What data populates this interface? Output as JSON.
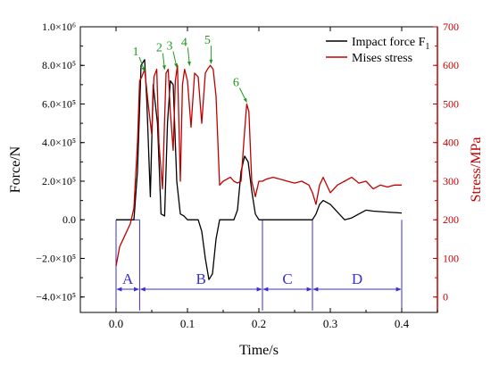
{
  "chart_data": {
    "type": "line",
    "xlabel": "Time/s",
    "ylabel": "Force/N",
    "y2label": "Stress/MPa",
    "xlim": [
      -0.05,
      0.45
    ],
    "ylim": [
      -480000,
      1000000
    ],
    "y2lim": [
      -40,
      700
    ],
    "x_ticks": [
      0.0,
      0.1,
      0.2,
      0.3,
      0.4
    ],
    "x_tick_labels": [
      "0.0",
      "0.1",
      "0.2",
      "0.3",
      "0.4"
    ],
    "y_ticks": [
      -400000,
      -200000,
      0,
      200000,
      400000,
      600000,
      800000,
      1000000
    ],
    "y_tick_labels": [
      "−4.0×10⁵",
      "−2.0×10⁵",
      "0.0",
      "2.0×10⁵",
      "4.0×10⁵",
      "6.0×10⁵",
      "8.0×10⁵",
      "1.0×10⁶"
    ],
    "y2_ticks": [
      0,
      100,
      200,
      300,
      400,
      500,
      600,
      700
    ],
    "y2_tick_labels": [
      "0",
      "100",
      "200",
      "300",
      "400",
      "500",
      "600",
      "700"
    ],
    "grid": false,
    "legend_position": "top-right",
    "colors": {
      "force": "#000000",
      "stress": "#c00000",
      "axis2": "#c00000",
      "phase": "#3b2fd0",
      "annotation": "#1f9a1f"
    },
    "series": [
      {
        "name": "Impact force F",
        "name_subscript": "1",
        "axis": "left",
        "x": [
          0.0,
          0.025,
          0.03,
          0.035,
          0.04,
          0.043,
          0.048,
          0.052,
          0.058,
          0.063,
          0.068,
          0.072,
          0.076,
          0.08,
          0.085,
          0.09,
          0.095,
          0.1,
          0.105,
          0.11,
          0.115,
          0.12,
          0.125,
          0.13,
          0.135,
          0.14,
          0.145,
          0.15,
          0.155,
          0.16,
          0.165,
          0.17,
          0.175,
          0.18,
          0.185,
          0.19,
          0.195,
          0.2,
          0.205,
          0.22,
          0.24,
          0.26,
          0.275,
          0.28,
          0.285,
          0.29,
          0.3,
          0.31,
          0.32,
          0.33,
          0.34,
          0.35,
          0.36,
          0.38,
          0.4
        ],
        "y": [
          0,
          0,
          250000,
          800000,
          830000,
          620000,
          120000,
          700000,
          500000,
          30000,
          20000,
          500000,
          720000,
          700000,
          200000,
          30000,
          20000,
          0,
          0,
          0,
          0,
          -60000,
          -200000,
          -310000,
          -280000,
          -100000,
          0,
          0,
          0,
          0,
          0,
          50000,
          250000,
          330000,
          300000,
          150000,
          30000,
          0,
          0,
          0,
          0,
          0,
          0,
          30000,
          80000,
          100000,
          80000,
          40000,
          0,
          10000,
          30000,
          50000,
          45000,
          40000,
          35000
        ]
      },
      {
        "name": "Mises stress",
        "axis": "right",
        "x": [
          0.0,
          0.005,
          0.01,
          0.015,
          0.02,
          0.025,
          0.03,
          0.033,
          0.036,
          0.04,
          0.045,
          0.05,
          0.053,
          0.057,
          0.06,
          0.065,
          0.07,
          0.073,
          0.076,
          0.08,
          0.083,
          0.086,
          0.09,
          0.093,
          0.096,
          0.1,
          0.105,
          0.11,
          0.115,
          0.12,
          0.125,
          0.128,
          0.132,
          0.136,
          0.14,
          0.145,
          0.15,
          0.155,
          0.16,
          0.165,
          0.17,
          0.175,
          0.18,
          0.183,
          0.186,
          0.19,
          0.195,
          0.2,
          0.205,
          0.21,
          0.22,
          0.23,
          0.24,
          0.25,
          0.26,
          0.27,
          0.275,
          0.28,
          0.285,
          0.29,
          0.3,
          0.31,
          0.32,
          0.33,
          0.34,
          0.35,
          0.36,
          0.37,
          0.38,
          0.39,
          0.4
        ],
        "y": [
          80,
          130,
          150,
          170,
          190,
          230,
          400,
          560,
          570,
          590,
          500,
          420,
          570,
          590,
          400,
          280,
          580,
          590,
          480,
          380,
          560,
          600,
          300,
          550,
          590,
          560,
          440,
          580,
          570,
          450,
          580,
          590,
          600,
          590,
          520,
          290,
          300,
          305,
          310,
          300,
          295,
          300,
          430,
          500,
          480,
          300,
          260,
          300,
          300,
          305,
          310,
          305,
          300,
          295,
          300,
          290,
          270,
          240,
          290,
          310,
          270,
          290,
          300,
          310,
          295,
          300,
          280,
          290,
          285,
          290,
          290
        ]
      }
    ],
    "phases": [
      {
        "label": "A",
        "x_start": 0.0,
        "x_end": 0.033
      },
      {
        "label": "B",
        "x_start": 0.033,
        "x_end": 0.205
      },
      {
        "label": "C",
        "x_start": 0.205,
        "x_end": 0.275
      },
      {
        "label": "D",
        "x_start": 0.275,
        "x_end": 0.4
      }
    ],
    "annotations": [
      {
        "label": "1",
        "x": 0.04,
        "y2": 580
      },
      {
        "label": "2",
        "x": 0.068,
        "y2": 585
      },
      {
        "label": "3",
        "x": 0.085,
        "y2": 590
      },
      {
        "label": "4",
        "x": 0.103,
        "y2": 595
      },
      {
        "label": "5",
        "x": 0.133,
        "y2": 600
      },
      {
        "label": "6",
        "x": 0.183,
        "y2": 500
      }
    ]
  }
}
